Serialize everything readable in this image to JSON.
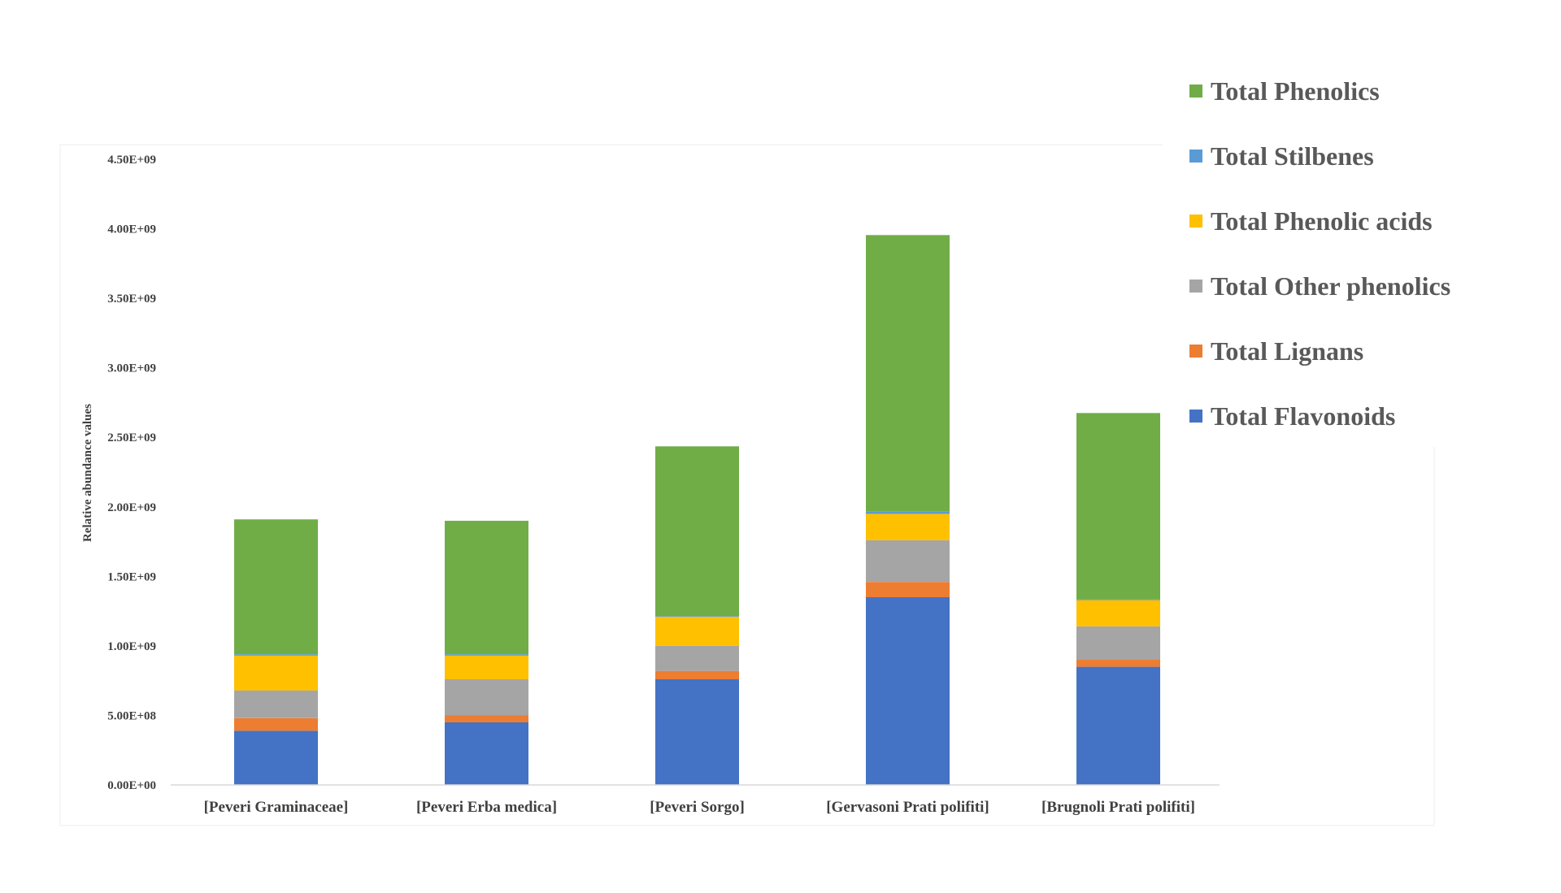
{
  "chart_data": {
    "type": "bar",
    "stacked": true,
    "ylabel": "Relative abundance values",
    "ylim": [
      0,
      4500000000
    ],
    "y_ticks": [
      "0.00E+00",
      "5.00E+08",
      "1.00E+09",
      "1.50E+09",
      "2.00E+09",
      "2.50E+09",
      "3.00E+09",
      "3.50E+09",
      "4.00E+09",
      "4.50E+09"
    ],
    "y_tick_values": [
      0,
      500000000,
      1000000000,
      1500000000,
      2000000000,
      2500000000,
      3000000000,
      3500000000,
      4000000000,
      4500000000
    ],
    "categories": [
      "[Peveri Graminaceae]",
      "[Peveri Erba medica]",
      "[Peveri Sorgo]",
      "[Gervasoni Prati polifiti]",
      "[Brugnoli Prati polifiti]"
    ],
    "series": [
      {
        "name": "Total Flavonoids",
        "color": "#4472C4",
        "values": [
          390000000,
          450000000,
          760000000,
          1350000000,
          850000000
        ]
      },
      {
        "name": "Total Lignans",
        "color": "#ED7D31",
        "values": [
          90000000,
          50000000,
          60000000,
          110000000,
          50000000
        ]
      },
      {
        "name": "Total Other phenolics",
        "color": "#A5A5A5",
        "values": [
          200000000,
          260000000,
          180000000,
          300000000,
          240000000
        ]
      },
      {
        "name": "Total Phenolic acids",
        "color": "#FFC000",
        "values": [
          250000000,
          170000000,
          210000000,
          190000000,
          190000000
        ]
      },
      {
        "name": "Total Stilbenes",
        "color": "#5B9BD5",
        "values": [
          10000000,
          10000000,
          5000000,
          15000000,
          5000000
        ]
      },
      {
        "name": "Total Phenolics",
        "color": "#70AD47",
        "values": [
          970000000,
          960000000,
          1220000000,
          1990000000,
          1340000000
        ]
      }
    ],
    "grid": false,
    "legend_position": "right"
  }
}
